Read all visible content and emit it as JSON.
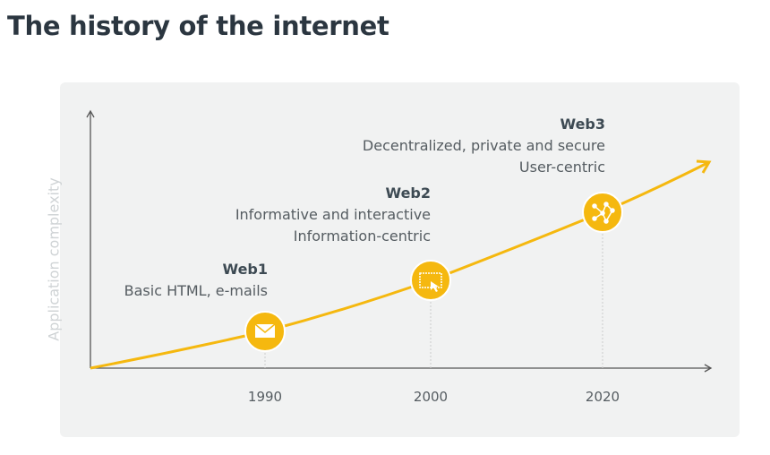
{
  "title": "The history of the internet",
  "y_axis_label": "Application complexity",
  "accent_color": "#f5b80f",
  "milestones": [
    {
      "year": "1990",
      "name": "Web1",
      "lines": [
        "Basic HTML, e-mails"
      ],
      "icon": "envelope-icon"
    },
    {
      "year": "2000",
      "name": "Web2",
      "lines": [
        "Informative and interactive",
        "Information-centric"
      ],
      "icon": "browser-cursor-icon"
    },
    {
      "year": "2020",
      "name": "Web3",
      "lines": [
        "Decentralized, private and secure",
        "User-centric"
      ],
      "icon": "network-nodes-icon"
    }
  ]
}
